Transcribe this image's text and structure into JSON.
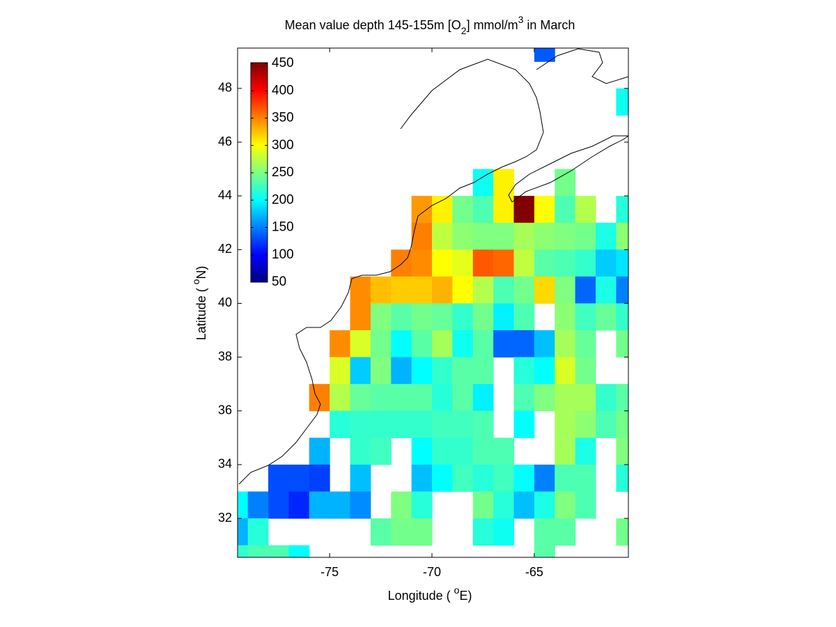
{
  "chart_data": {
    "type": "heatmap",
    "title": [
      "Mean value depth 145-155m [O",
      "2",
      "] mmol/m",
      "3",
      " in March"
    ],
    "xlabel": [
      "Longitude ( ",
      "o",
      "E)"
    ],
    "ylabel": [
      "Latitude ( ",
      "o",
      "N)"
    ],
    "colormap": "jet",
    "clim": [
      50,
      450
    ],
    "cticks": [
      50,
      100,
      150,
      200,
      250,
      300,
      350,
      400,
      450
    ],
    "xlim": [
      -79.5,
      -60.4
    ],
    "ylim": [
      30.55,
      49.5
    ],
    "xticks": [
      -75,
      -70,
      -65
    ],
    "yticks": [
      32,
      34,
      36,
      38,
      40,
      42,
      44,
      46,
      48
    ],
    "x": [
      -79.5,
      -78.5,
      -77.5,
      -76.5,
      -75.5,
      -74.5,
      -73.5,
      -72.5,
      -71.5,
      -70.5,
      -69.5,
      -68.5,
      -67.5,
      -66.5,
      -65.5,
      -64.5,
      -63.5,
      -62.5,
      -61.5,
      -60.5
    ],
    "y": [
      49.5,
      48.5,
      47.5,
      46.5,
      45.5,
      44.5,
      43.5,
      42.5,
      41.5,
      40.5,
      39.5,
      38.5,
      37.5,
      36.5,
      35.5,
      34.5,
      33.5,
      32.5,
      31.5,
      30.5
    ],
    "values": [
      [
        null,
        null,
        null,
        null,
        null,
        null,
        null,
        null,
        null,
        null,
        null,
        null,
        null,
        null,
        null,
        135,
        null,
        null,
        null,
        null
      ],
      [
        null,
        null,
        null,
        null,
        null,
        null,
        null,
        null,
        null,
        null,
        null,
        null,
        null,
        null,
        null,
        null,
        null,
        null,
        null,
        null
      ],
      [
        null,
        null,
        null,
        null,
        null,
        null,
        null,
        null,
        null,
        null,
        null,
        null,
        null,
        null,
        null,
        null,
        null,
        null,
        null,
        205
      ],
      [
        null,
        null,
        null,
        null,
        null,
        null,
        null,
        null,
        null,
        null,
        null,
        null,
        null,
        null,
        null,
        null,
        null,
        null,
        null,
        null
      ],
      [
        null,
        null,
        null,
        null,
        null,
        null,
        null,
        null,
        null,
        null,
        null,
        null,
        null,
        null,
        null,
        null,
        null,
        null,
        null,
        null
      ],
      [
        null,
        null,
        null,
        null,
        null,
        null,
        null,
        null,
        null,
        null,
        null,
        null,
        205,
        305,
        null,
        null,
        245,
        null,
        null,
        null
      ],
      [
        null,
        null,
        null,
        null,
        null,
        null,
        null,
        null,
        null,
        340,
        305,
        245,
        230,
        305,
        450,
        300,
        230,
        270,
        null,
        215
      ],
      [
        null,
        null,
        null,
        null,
        null,
        null,
        null,
        null,
        null,
        350,
        275,
        255,
        250,
        250,
        265,
        255,
        250,
        245,
        210,
        255
      ],
      [
        null,
        null,
        null,
        null,
        null,
        null,
        null,
        null,
        350,
        345,
        300,
        290,
        365,
        360,
        275,
        235,
        230,
        220,
        180,
        190
      ],
      [
        null,
        null,
        null,
        null,
        null,
        null,
        345,
        325,
        320,
        320,
        330,
        300,
        270,
        230,
        245,
        315,
        250,
        140,
        210,
        150
      ],
      [
        null,
        null,
        null,
        null,
        null,
        null,
        345,
        250,
        235,
        245,
        240,
        220,
        245,
        195,
        230,
        null,
        255,
        225,
        240,
        220
      ],
      [
        null,
        null,
        null,
        null,
        null,
        345,
        285,
        245,
        200,
        235,
        265,
        205,
        235,
        140,
        140,
        175,
        265,
        240,
        null,
        245
      ],
      [
        null,
        null,
        null,
        null,
        null,
        285,
        180,
        250,
        170,
        200,
        220,
        235,
        235,
        null,
        215,
        200,
        285,
        245,
        null,
        null
      ],
      [
        null,
        null,
        null,
        null,
        350,
        270,
        240,
        235,
        235,
        235,
        215,
        235,
        195,
        null,
        230,
        250,
        265,
        265,
        220,
        235
      ],
      [
        null,
        null,
        null,
        null,
        null,
        215,
        220,
        220,
        220,
        220,
        225,
        225,
        230,
        null,
        200,
        null,
        265,
        255,
        230,
        245
      ],
      [
        null,
        null,
        null,
        null,
        170,
        null,
        220,
        225,
        null,
        200,
        220,
        220,
        230,
        230,
        null,
        null,
        265,
        210,
        null,
        250
      ],
      [
        null,
        null,
        130,
        130,
        125,
        null,
        175,
        null,
        null,
        175,
        200,
        225,
        215,
        225,
        200,
        150,
        230,
        230,
        null,
        215
      ],
      [
        200,
        150,
        130,
        115,
        170,
        170,
        155,
        null,
        250,
        215,
        null,
        null,
        245,
        215,
        175,
        210,
        250,
        230,
        null,
        null
      ],
      [
        170,
        215,
        null,
        null,
        null,
        null,
        null,
        235,
        245,
        245,
        null,
        null,
        215,
        205,
        null,
        235,
        235,
        null,
        null,
        245
      ],
      [
        220,
        230,
        230,
        200,
        null,
        null,
        null,
        null,
        null,
        null,
        null,
        null,
        null,
        null,
        null,
        235,
        null,
        null,
        null,
        null
      ]
    ]
  }
}
